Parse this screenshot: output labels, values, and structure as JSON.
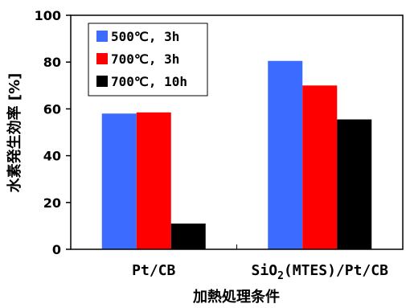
{
  "chart_data": {
    "type": "bar",
    "categories": [
      "Pt/CB",
      "SiO2(MTES)/Pt/CB"
    ],
    "series": [
      {
        "name": "500℃, 3h",
        "values": [
          58,
          80.5
        ],
        "color": "#3b6cff"
      },
      {
        "name": "700℃, 3h",
        "values": [
          58.5,
          70
        ],
        "color": "#ff0000"
      },
      {
        "name": "700℃, 10h",
        "values": [
          11,
          55.5
        ],
        "color": "#000000"
      }
    ],
    "xlabel": "加熱処理条件",
    "ylabel": "水素発生効率 [%]",
    "ylim": [
      0,
      100
    ],
    "yticks": [
      0,
      20,
      40,
      60,
      80,
      100
    ],
    "grid": false,
    "legend_position": "top-left"
  }
}
